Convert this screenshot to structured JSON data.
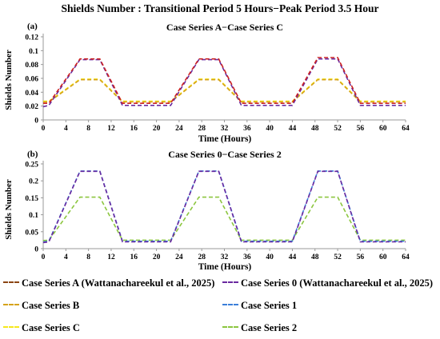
{
  "figure_title": "Shields Number : Transitional Period 5 Hours−Peak Period 3.5 Hour",
  "colors": {
    "A": "#8b4513",
    "0": "#6a2aa0",
    "B": "#d6a21a",
    "1": "#3b7fd9",
    "C": "#f5e81c",
    "2": "#8cc63f",
    "line_top_A": "#cc2222"
  },
  "legend": [
    {
      "label": "Case Series A (Wattanachareekul et al., 2025)",
      "color": "#8b4513"
    },
    {
      "label": "Case Series 0  (Wattanachareekul et al., 2025)",
      "color": "#6a2aa0"
    },
    {
      "label": "Case Series B",
      "color": "#d6a21a"
    },
    {
      "label": "Case Series 1",
      "color": "#3b7fd9"
    },
    {
      "label": "Case Series C",
      "color": "#f5e81c"
    },
    {
      "label": "Case Series 2",
      "color": "#8cc63f"
    }
  ],
  "chart_data": [
    {
      "type": "line",
      "panel_label": "(a)",
      "title": "Case Series A−Case Series C",
      "xlabel": "Time (Hours)",
      "ylabel": "Shields Number",
      "xlim": [
        0,
        64
      ],
      "ylim": [
        0,
        0.12
      ],
      "xticks": [
        0,
        4,
        8,
        12,
        16,
        20,
        24,
        28,
        32,
        36,
        40,
        44,
        48,
        52,
        56,
        60,
        64
      ],
      "yticks": [
        "0",
        "0.02",
        "0.04",
        "0.06",
        "0.08",
        "0.1",
        "0.12"
      ],
      "ytick_values": [
        0,
        0.02,
        0.04,
        0.06,
        0.08,
        0.1,
        0.12
      ],
      "x": [
        0,
        1,
        6.5,
        10,
        14,
        21.5,
        22.5,
        27.5,
        31,
        35,
        43,
        44,
        48.5,
        52,
        56,
        64
      ],
      "series": [
        {
          "name": "Case Series A (Wattanachareekul et al., 2025)",
          "color": "#cc2222",
          "values": [
            0.024,
            0.024,
            0.088,
            0.088,
            0.024,
            0.024,
            0.024,
            0.088,
            0.088,
            0.024,
            0.024,
            0.024,
            0.09,
            0.09,
            0.024,
            0.024
          ]
        },
        {
          "name": "Case Series 0  (Wattanachareekul et al., 2025)",
          "color": "#6a2aa0",
          "values": [
            0.019,
            0.021,
            0.087,
            0.087,
            0.021,
            0.021,
            0.021,
            0.087,
            0.087,
            0.021,
            0.021,
            0.021,
            0.088,
            0.088,
            0.021,
            0.021
          ]
        },
        {
          "name": "Case Series B",
          "color": "#d6a21a",
          "values": [
            0.026,
            0.026,
            0.058,
            0.058,
            0.026,
            0.026,
            0.026,
            0.058,
            0.058,
            0.026,
            0.026,
            0.026,
            0.058,
            0.058,
            0.026,
            0.026
          ]
        },
        {
          "name": "Case Series C",
          "color": "#f5e81c",
          "values": [
            0.027,
            0.027,
            0.059,
            0.059,
            0.027,
            0.027,
            0.027,
            0.059,
            0.059,
            0.027,
            0.027,
            0.027,
            0.059,
            0.059,
            0.027,
            0.027
          ]
        }
      ]
    },
    {
      "type": "line",
      "panel_label": "(b)",
      "title": "Case Series 0−Case Series 2",
      "xlabel": "Time (Hours)",
      "ylabel": "Shields Number",
      "xlim": [
        0,
        64
      ],
      "ylim": [
        0,
        0.25
      ],
      "xticks": [
        0,
        4,
        8,
        12,
        16,
        20,
        24,
        28,
        32,
        36,
        40,
        44,
        48,
        52,
        56,
        60,
        64
      ],
      "yticks": [
        "0",
        "0.05",
        "0.1",
        "0.15",
        "0.2",
        "0.25"
      ],
      "ytick_values": [
        0,
        0.05,
        0.1,
        0.15,
        0.2,
        0.25
      ],
      "x": [
        0,
        1,
        6.5,
        10,
        14,
        21.5,
        22.5,
        27.5,
        31,
        35,
        43,
        44,
        48.5,
        52,
        56,
        64
      ],
      "series": [
        {
          "name": "Case Series 0  (Wattanachareekul et al., 2025)",
          "color": "#6a2aa0",
          "values": [
            0.018,
            0.02,
            0.228,
            0.228,
            0.02,
            0.02,
            0.02,
            0.228,
            0.228,
            0.02,
            0.02,
            0.02,
            0.228,
            0.228,
            0.02,
            0.02
          ]
        },
        {
          "name": "Case Series 1",
          "color": "#3b7fd9",
          "values": [
            0.02,
            0.022,
            0.229,
            0.229,
            0.022,
            0.022,
            0.022,
            0.229,
            0.229,
            0.022,
            0.022,
            0.022,
            0.229,
            0.229,
            0.022,
            0.022
          ]
        },
        {
          "name": "Case Series 2",
          "color": "#8cc63f",
          "values": [
            0.024,
            0.025,
            0.152,
            0.152,
            0.025,
            0.025,
            0.025,
            0.152,
            0.152,
            0.025,
            0.025,
            0.025,
            0.152,
            0.152,
            0.025,
            0.025
          ]
        }
      ]
    }
  ]
}
